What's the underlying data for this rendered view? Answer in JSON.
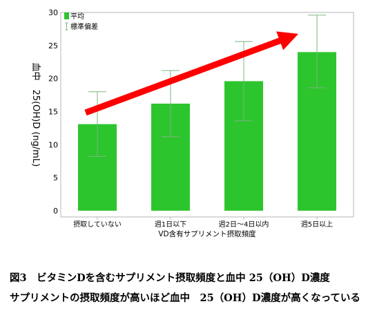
{
  "chart_data": {
    "type": "bar",
    "categories": [
      "摂取していない",
      "週1日以下",
      "週2日～4日以内",
      "週5日以上"
    ],
    "values": [
      13.1,
      16.2,
      19.6,
      24.0
    ],
    "error_bars": {
      "upper": [
        18.0,
        21.2,
        25.6,
        29.6
      ],
      "lower": [
        8.2,
        11.2,
        13.6,
        18.6
      ]
    },
    "ylim": [
      0,
      30
    ],
    "yticks": [
      0,
      5,
      10,
      15,
      20,
      25,
      30
    ],
    "ylabel": "血中　25(OH)D (ng/mL)",
    "xlabel": "VD含有サプリメント摂取頻度",
    "grid": false,
    "legend": {
      "position": "top-left",
      "items": [
        {
          "label": "平均",
          "symbol": "bar"
        },
        {
          "label": "標準偏差",
          "symbol": "errorbar"
        }
      ]
    },
    "annotation": "increasing-trend-arrow",
    "colors": {
      "bar": "#2dc52d",
      "errorbar": "#7fb37f",
      "arrow": "#ff0000",
      "frame": "#b4b4b4"
    }
  },
  "captions": {
    "line1": "図3　ビタミンDを含むサプリメント摂取頻度と血中 25（OH）D濃度",
    "line2": "サプリメントの摂取頻度が高いほど血中　25（OH）D濃度が高くなっている"
  }
}
